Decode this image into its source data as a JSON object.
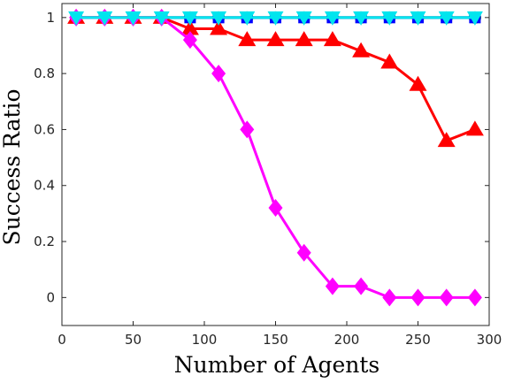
{
  "chart_data": {
    "type": "line",
    "title": "",
    "xlabel": "Number of Agents",
    "ylabel": "Success Ratio",
    "xlim": [
      0,
      300
    ],
    "ylim": [
      -0.1,
      1.05
    ],
    "xticks": [
      0,
      50,
      100,
      150,
      200,
      250,
      300
    ],
    "yticks": [
      0,
      0.2,
      0.4,
      0.6,
      0.8,
      1
    ],
    "x": [
      10,
      30,
      50,
      70,
      90,
      110,
      130,
      150,
      170,
      190,
      210,
      230,
      250,
      270,
      290
    ],
    "grid": false,
    "legend": "none",
    "series": [
      {
        "marker": "circle",
        "color": "#008000",
        "values": [
          1,
          1,
          1,
          1,
          1,
          1,
          1,
          1,
          1,
          1,
          1,
          1,
          1,
          1,
          1
        ]
      },
      {
        "marker": "square",
        "color": "#0000ff",
        "values": [
          1,
          1,
          1,
          1,
          1,
          1,
          1,
          1,
          1,
          1,
          1,
          1,
          1,
          1,
          1
        ]
      },
      {
        "marker": "triangle-up",
        "color": "#ff0000",
        "values": [
          1,
          1,
          1,
          1,
          0.96,
          0.96,
          0.92,
          0.92,
          0.92,
          0.92,
          0.88,
          0.84,
          0.76,
          0.56,
          0.6
        ]
      },
      {
        "marker": "diamond",
        "color": "#ff00ff",
        "values": [
          1,
          1,
          1,
          1,
          0.92,
          0.8,
          0.6,
          0.32,
          0.16,
          0.04,
          0.04,
          0,
          0,
          0,
          0
        ]
      },
      {
        "marker": "triangle-down",
        "color": "#00e5ee",
        "values": [
          1,
          1,
          1,
          1,
          1,
          1,
          1,
          1,
          1,
          1,
          1,
          1,
          1,
          1,
          1
        ]
      }
    ]
  }
}
